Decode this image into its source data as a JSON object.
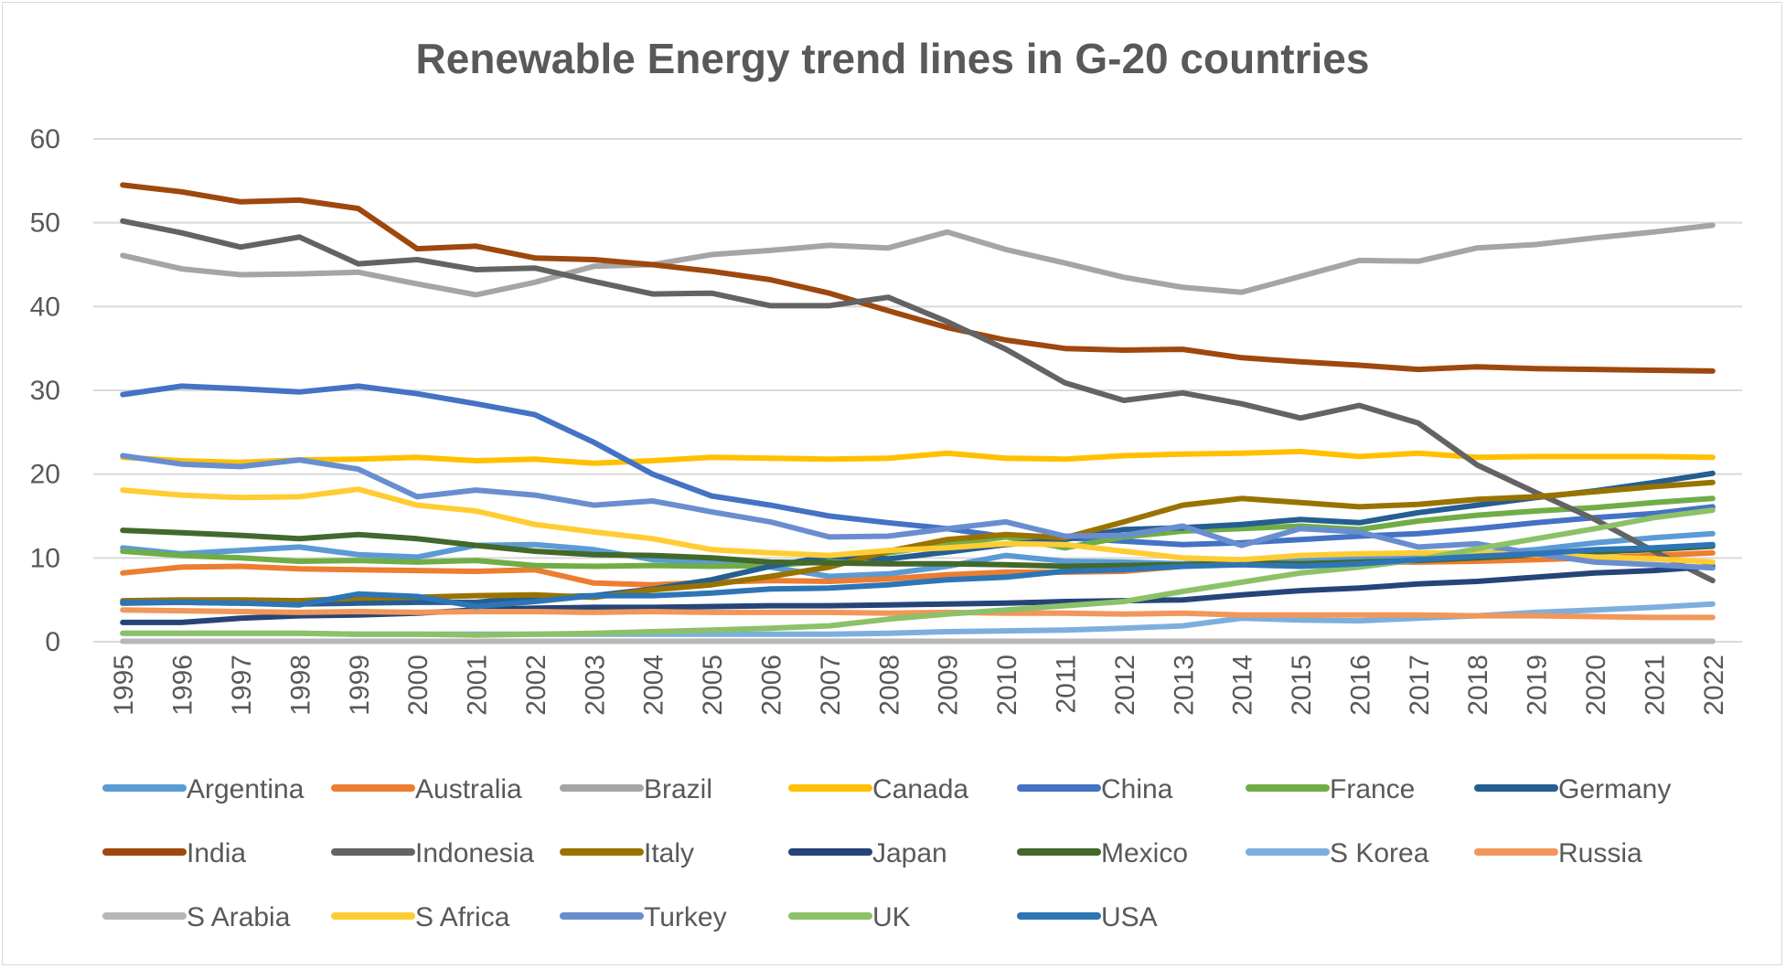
{
  "chart_data": {
    "type": "line",
    "title": "Renewable Energy trend lines in G-20 countries",
    "xlabel": "",
    "ylabel": "",
    "ylim": [
      0,
      60
    ],
    "yticks": [
      0,
      10,
      20,
      30,
      40,
      50,
      60
    ],
    "grid": true,
    "legend_position": "bottom",
    "x": [
      "1995",
      "1996",
      "1997",
      "1998",
      "1999",
      "2000",
      "2001",
      "2002",
      "2003",
      "2004",
      "2005",
      "2006",
      "2007",
      "2008",
      "2009",
      "2010",
      "2011",
      "2012",
      "2013",
      "2014",
      "2015",
      "2016",
      "2017",
      "2018",
      "2019",
      "2020",
      "2021",
      "2022"
    ],
    "series": [
      {
        "name": "Argentina",
        "color": "#5B9BD5",
        "values": [
          11.2,
          10.5,
          10.9,
          11.3,
          10.4,
          10.1,
          11.5,
          11.6,
          11.0,
          9.8,
          9.5,
          8.9,
          7.8,
          8.1,
          9.0,
          10.3,
          9.6,
          9.5,
          9.3,
          9.6,
          9.8,
          10.0,
          10.2,
          10.5,
          11.0,
          11.8,
          12.4,
          12.9
        ]
      },
      {
        "name": "Australia",
        "color": "#ED7D31",
        "values": [
          8.2,
          8.9,
          9.0,
          8.7,
          8.6,
          8.5,
          8.4,
          8.6,
          7.0,
          6.8,
          7.1,
          7.3,
          7.2,
          7.5,
          8.0,
          8.3,
          8.3,
          8.4,
          9.0,
          9.3,
          9.2,
          9.5,
          9.5,
          9.6,
          9.8,
          10.0,
          10.3,
          10.6
        ]
      },
      {
        "name": "Brazil",
        "color": "#A5A5A5",
        "values": [
          46.1,
          44.5,
          43.8,
          43.9,
          44.1,
          42.7,
          41.4,
          42.9,
          44.8,
          45.0,
          46.2,
          46.7,
          47.3,
          47.0,
          48.9,
          46.8,
          45.2,
          43.5,
          42.3,
          41.7,
          43.6,
          45.5,
          45.4,
          47.0,
          47.4,
          48.2,
          48.9,
          49.7
        ]
      },
      {
        "name": "Canada",
        "color": "#FFC000",
        "values": [
          22.0,
          21.6,
          21.4,
          21.7,
          21.8,
          22.0,
          21.6,
          21.8,
          21.3,
          21.6,
          22.0,
          21.9,
          21.8,
          21.9,
          22.5,
          21.9,
          21.8,
          22.2,
          22.4,
          22.5,
          22.7,
          22.1,
          22.5,
          22.0,
          22.1,
          22.1,
          22.1,
          22.0
        ]
      },
      {
        "name": "China",
        "color": "#4472C4",
        "values": [
          29.5,
          30.5,
          30.2,
          29.8,
          30.5,
          29.6,
          28.4,
          27.1,
          23.8,
          20.0,
          17.4,
          16.3,
          15.0,
          14.2,
          13.5,
          12.5,
          12.4,
          12.0,
          11.6,
          11.8,
          12.2,
          12.6,
          12.9,
          13.5,
          14.2,
          14.8,
          15.3,
          16.1
        ]
      },
      {
        "name": "France",
        "color": "#70AD47",
        "values": [
          10.8,
          10.3,
          10.0,
          9.6,
          9.7,
          9.5,
          9.7,
          9.1,
          9.0,
          9.1,
          9.0,
          9.1,
          9.6,
          10.6,
          11.6,
          12.5,
          11.2,
          12.5,
          13.2,
          13.5,
          13.8,
          13.4,
          14.4,
          15.1,
          15.6,
          16.0,
          16.6,
          17.1
        ]
      },
      {
        "name": "Germany",
        "color": "#255E91",
        "values": [
          4.6,
          4.7,
          4.6,
          4.5,
          4.6,
          4.7,
          4.7,
          5.3,
          5.5,
          6.3,
          7.4,
          9.0,
          10.2,
          9.9,
          10.7,
          11.6,
          12.2,
          13.4,
          13.6,
          14.0,
          14.6,
          14.2,
          15.4,
          16.3,
          17.2,
          18.0,
          19.0,
          20.1
        ]
      },
      {
        "name": "India",
        "color": "#9E480E",
        "values": [
          54.5,
          53.7,
          52.5,
          52.7,
          51.7,
          46.9,
          47.2,
          45.8,
          45.6,
          45.0,
          44.2,
          43.2,
          41.6,
          39.5,
          37.5,
          36.0,
          35.0,
          34.8,
          34.9,
          33.9,
          33.4,
          33.0,
          32.5,
          32.8,
          32.6,
          32.5,
          32.4,
          32.3
        ]
      },
      {
        "name": "Indonesia",
        "color": "#636363",
        "values": [
          50.2,
          48.8,
          47.1,
          48.3,
          45.1,
          45.6,
          44.4,
          44.6,
          43.0,
          41.5,
          41.6,
          40.1,
          40.1,
          41.1,
          38.2,
          34.9,
          30.9,
          28.8,
          29.7,
          28.4,
          26.7,
          28.2,
          26.1,
          21.1,
          17.8,
          14.6,
          10.8,
          7.3
        ]
      },
      {
        "name": "Italy",
        "color": "#997300",
        "values": [
          4.9,
          5.0,
          5.0,
          4.9,
          5.2,
          5.3,
          5.5,
          5.6,
          5.3,
          6.2,
          6.8,
          7.8,
          8.9,
          10.8,
          12.2,
          12.8,
          12.4,
          14.3,
          16.3,
          17.1,
          16.6,
          16.1,
          16.4,
          17.0,
          17.3,
          17.9,
          18.5,
          19.0
        ]
      },
      {
        "name": "Japan",
        "color": "#264478",
        "values": [
          2.3,
          2.3,
          2.8,
          3.1,
          3.2,
          3.4,
          3.8,
          4.0,
          4.1,
          4.1,
          4.2,
          4.3,
          4.3,
          4.4,
          4.5,
          4.6,
          4.8,
          4.9,
          5.0,
          5.6,
          6.1,
          6.4,
          6.9,
          7.2,
          7.7,
          8.2,
          8.5,
          9.0
        ]
      },
      {
        "name": "Mexico",
        "color": "#43682B",
        "values": [
          13.3,
          13.0,
          12.7,
          12.3,
          12.8,
          12.3,
          11.5,
          10.8,
          10.4,
          10.3,
          10.0,
          9.5,
          9.4,
          9.3,
          9.3,
          9.2,
          9.0,
          9.1,
          9.2,
          9.4,
          9.3,
          9.5,
          9.7,
          10.0,
          10.4,
          10.7,
          11.0,
          11.4
        ]
      },
      {
        "name": "S Korea",
        "color": "#7CAFDD",
        "values": [
          1.0,
          1.0,
          1.0,
          1.0,
          0.9,
          0.9,
          0.9,
          0.9,
          0.9,
          0.9,
          0.9,
          0.9,
          0.9,
          1.0,
          1.2,
          1.3,
          1.4,
          1.6,
          1.9,
          2.8,
          2.6,
          2.5,
          2.8,
          3.1,
          3.5,
          3.8,
          4.1,
          4.5
        ]
      },
      {
        "name": "Russia",
        "color": "#F1975A",
        "values": [
          3.8,
          3.7,
          3.6,
          3.5,
          3.6,
          3.5,
          3.6,
          3.6,
          3.5,
          3.6,
          3.5,
          3.5,
          3.5,
          3.4,
          3.5,
          3.4,
          3.4,
          3.3,
          3.4,
          3.2,
          3.2,
          3.2,
          3.2,
          3.1,
          3.1,
          3.0,
          2.9,
          2.9
        ]
      },
      {
        "name": "S Arabia",
        "color": "#B7B7B7",
        "values": [
          0.05,
          0.05,
          0.05,
          0.05,
          0.05,
          0.05,
          0.05,
          0.05,
          0.05,
          0.05,
          0.05,
          0.05,
          0.05,
          0.05,
          0.05,
          0.05,
          0.05,
          0.05,
          0.05,
          0.05,
          0.05,
          0.05,
          0.05,
          0.05,
          0.05,
          0.05,
          0.05,
          0.05
        ]
      },
      {
        "name": "S Africa",
        "color": "#FFCD33",
        "values": [
          18.1,
          17.5,
          17.2,
          17.3,
          18.2,
          16.3,
          15.6,
          14.0,
          13.1,
          12.3,
          11.0,
          10.6,
          10.3,
          10.9,
          11.2,
          11.7,
          11.6,
          10.8,
          10.0,
          9.8,
          10.3,
          10.5,
          10.6,
          10.6,
          10.4,
          10.1,
          9.9,
          9.5
        ]
      },
      {
        "name": "Turkey",
        "color": "#698ED0",
        "values": [
          22.2,
          21.2,
          20.9,
          21.7,
          20.6,
          17.3,
          18.1,
          17.5,
          16.3,
          16.8,
          15.5,
          14.3,
          12.5,
          12.6,
          13.5,
          14.3,
          12.6,
          12.7,
          13.8,
          11.5,
          13.5,
          13.1,
          11.3,
          11.7,
          10.5,
          9.5,
          9.2,
          8.8
        ]
      },
      {
        "name": "UK",
        "color": "#8CC168",
        "values": [
          1.0,
          1.0,
          1.0,
          1.0,
          0.9,
          0.9,
          0.8,
          0.9,
          1.0,
          1.2,
          1.4,
          1.6,
          1.9,
          2.7,
          3.3,
          3.8,
          4.3,
          4.8,
          6.0,
          7.1,
          8.2,
          8.9,
          9.8,
          11.1,
          12.3,
          13.5,
          14.8,
          15.7
        ]
      },
      {
        "name": "USA",
        "color": "#2E75B6",
        "values": [
          4.7,
          4.7,
          4.6,
          4.4,
          5.7,
          5.4,
          4.2,
          4.8,
          5.5,
          5.5,
          5.8,
          6.3,
          6.4,
          6.8,
          7.4,
          7.7,
          8.4,
          8.6,
          9.0,
          9.2,
          9.0,
          9.3,
          9.8,
          10.2,
          10.5,
          11.0,
          11.2,
          11.6
        ]
      }
    ]
  }
}
